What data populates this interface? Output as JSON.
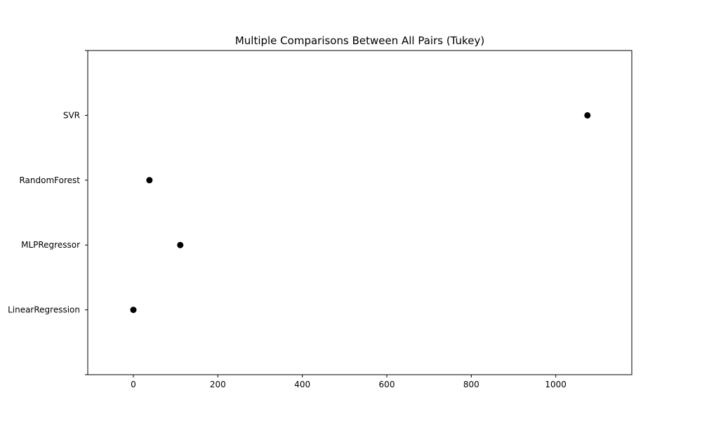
{
  "chart_data": {
    "type": "scatter",
    "title": "Multiple Comparisons Between All Pairs (Tukey)",
    "xlabel": "",
    "ylabel": "",
    "xlim": [
      -108,
      1180
    ],
    "xticks": [
      0,
      200,
      400,
      600,
      800,
      1000
    ],
    "categories": [
      "LinearRegression",
      "MLPRegressor",
      "RandomForest",
      "SVR"
    ],
    "values": [
      0,
      111,
      38,
      1075
    ],
    "grid": false,
    "legend": "none",
    "marker_color": "#000000"
  }
}
